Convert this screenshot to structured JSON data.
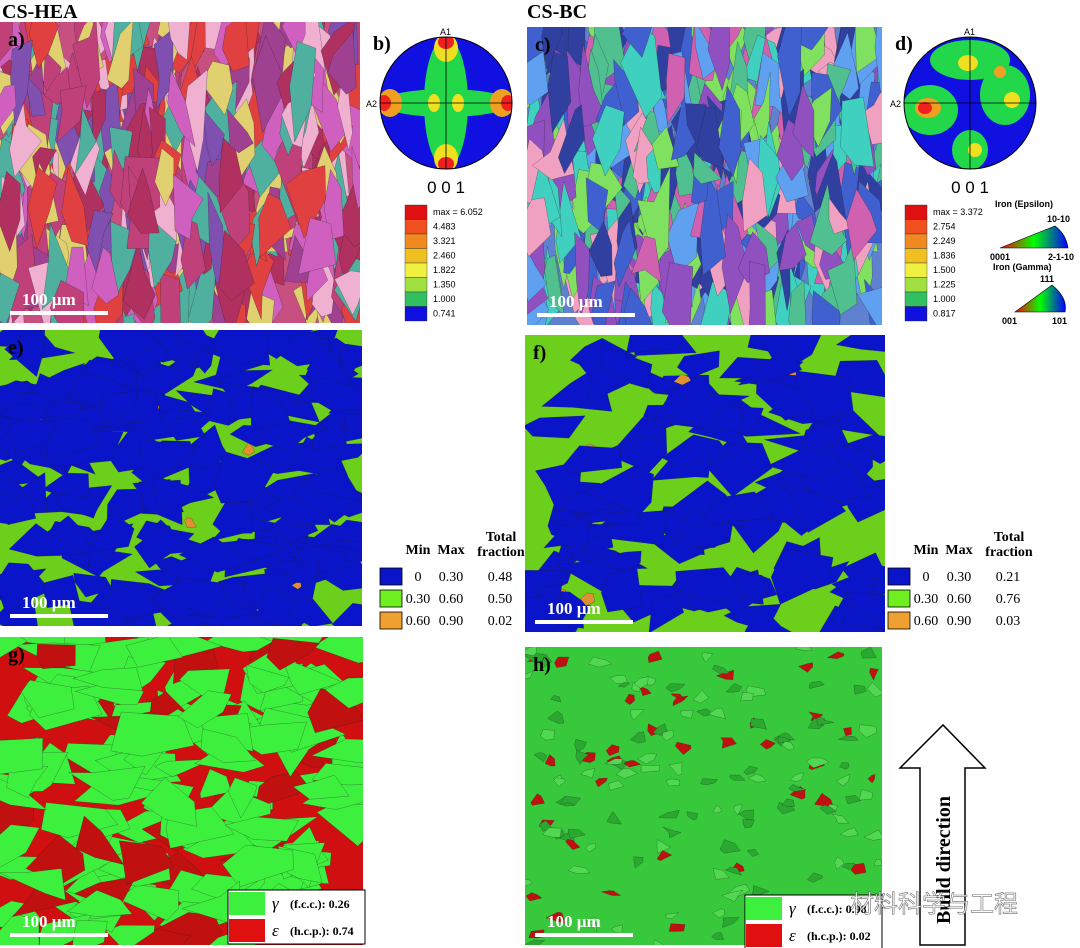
{
  "headers": [
    "CS-HEA",
    "CS-BC"
  ],
  "maps": [
    {
      "label": "a)",
      "scale_bar": "100 µm"
    },
    {
      "label": "c)",
      "scale_bar": "100 µm"
    },
    {
      "label": "e)",
      "scale_bar": "100 µm"
    },
    {
      "label": "f)",
      "scale_bar": "100 µm"
    },
    {
      "label": "g)",
      "scale_bar": "100 µm"
    },
    {
      "label": "h)",
      "scale_bar": "100 µm"
    }
  ],
  "pole_figures": [
    {
      "label": "b)",
      "axis_top": "A1",
      "axis_left": "A2",
      "direction": "0 0 1",
      "legend": [
        "max = 6.052",
        "4.483",
        "3.321",
        "2.460",
        "1.822",
        "1.350",
        "1.000",
        "0.741"
      ]
    },
    {
      "label": "d)",
      "axis_top": "A1",
      "axis_left": "A2",
      "direction": "0 0 1",
      "legend": [
        "max = 3.372",
        "2.754",
        "2.249",
        "1.836",
        "1.500",
        "1.225",
        "1.000",
        "0.817"
      ]
    }
  ],
  "kam_tables": [
    {
      "columns": [
        "Min",
        "Max",
        "Total fraction"
      ],
      "rows": [
        [
          "0",
          "0.30",
          "0.48"
        ],
        [
          "0.30",
          "0.60",
          "0.50"
        ],
        [
          "0.60",
          "0.90",
          "0.02"
        ]
      ]
    },
    {
      "columns": [
        "Min",
        "Max",
        "Total fraction"
      ],
      "rows": [
        [
          "0",
          "0.30",
          "0.21"
        ],
        [
          "0.30",
          "0.60",
          "0.76"
        ],
        [
          "0.60",
          "0.90",
          "0.03"
        ]
      ]
    }
  ],
  "phase_legends": [
    {
      "rows": [
        {
          "symbol": "γ",
          "text": "(f.c.c.): 0.26"
        },
        {
          "symbol": "ε",
          "text": "(h.c.p.): 0.74"
        }
      ]
    },
    {
      "rows": [
        {
          "symbol": "γ",
          "text": "(f.c.c.): 0.98"
        },
        {
          "symbol": "ε",
          "text": "(h.c.p.): 0.02"
        }
      ]
    }
  ],
  "ipf_key": {
    "epsilon_title": "Iron (Epsilon)",
    "epsilon_top": "10-10",
    "epsilon_left": "0001",
    "epsilon_right": "2-1-10",
    "gamma_title": "Iron (Gamma)",
    "gamma_top": "111",
    "gamma_left": "001",
    "gamma_right": "101"
  },
  "build_direction": "Build direction",
  "watermark": "材料科学与工程"
}
